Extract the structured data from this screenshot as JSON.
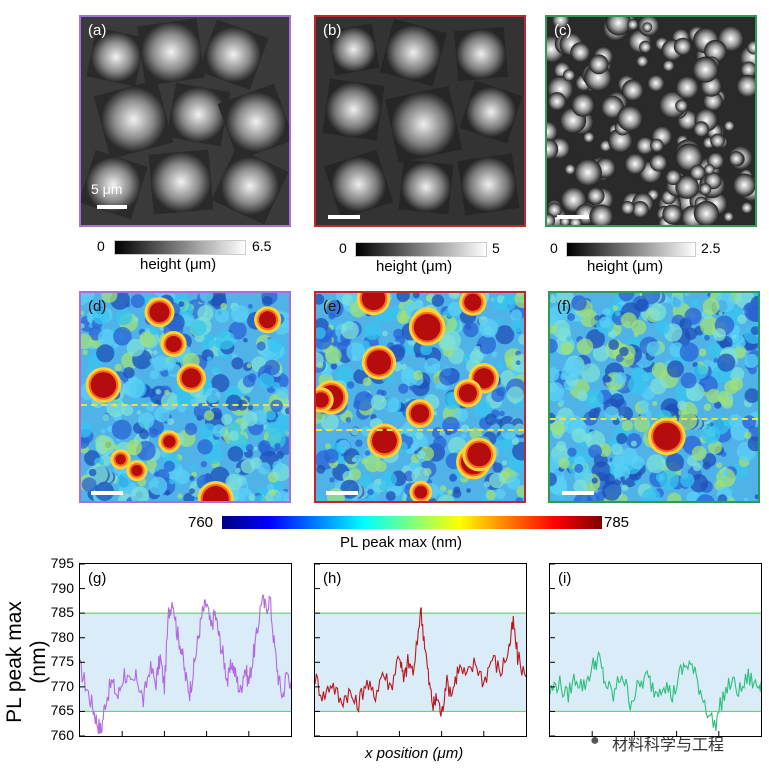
{
  "panels": {
    "a": {
      "label": "(a)",
      "border": "#a66fdc",
      "scale_text": "5 μm",
      "maxh": "6.5"
    },
    "b": {
      "label": "(b)",
      "border": "#c0272d",
      "maxh": "5"
    },
    "c": {
      "label": "(c)",
      "border": "#2e9b55",
      "maxh": "2.5"
    },
    "d": {
      "label": "(d)",
      "border": "#a66fdc"
    },
    "e": {
      "label": "(e)",
      "border": "#c0272d"
    },
    "f": {
      "label": "(f)",
      "border": "#2e9b55"
    }
  },
  "height_colorbar": {
    "min": "0",
    "label": "height (μm)"
  },
  "pl_colorbar": {
    "min": "760",
    "max": "785",
    "label": "PL peak max (nm)"
  },
  "chart_data": [
    {
      "type": "line",
      "title": "(g)",
      "xlabel": "x position (μm)",
      "ylabel": "PL peak max (nm)",
      "ylim": [
        760,
        795
      ],
      "yticks": [
        760,
        765,
        770,
        775,
        780,
        785,
        790,
        795
      ],
      "band": [
        765,
        785
      ],
      "color": "#b36ae0",
      "profile": [
        {
          "x": 0.0,
          "y": 774
        },
        {
          "x": 0.03,
          "y": 770
        },
        {
          "x": 0.06,
          "y": 766
        },
        {
          "x": 0.08,
          "y": 763
        },
        {
          "x": 0.1,
          "y": 761
        },
        {
          "x": 0.12,
          "y": 767
        },
        {
          "x": 0.15,
          "y": 771
        },
        {
          "x": 0.18,
          "y": 768
        },
        {
          "x": 0.21,
          "y": 773
        },
        {
          "x": 0.24,
          "y": 770
        },
        {
          "x": 0.27,
          "y": 772
        },
        {
          "x": 0.3,
          "y": 767
        },
        {
          "x": 0.33,
          "y": 774
        },
        {
          "x": 0.36,
          "y": 771
        },
        {
          "x": 0.38,
          "y": 776
        },
        {
          "x": 0.4,
          "y": 770
        },
        {
          "x": 0.42,
          "y": 785
        },
        {
          "x": 0.44,
          "y": 788
        },
        {
          "x": 0.46,
          "y": 781
        },
        {
          "x": 0.48,
          "y": 778
        },
        {
          "x": 0.5,
          "y": 772
        },
        {
          "x": 0.52,
          "y": 769
        },
        {
          "x": 0.54,
          "y": 774
        },
        {
          "x": 0.56,
          "y": 780
        },
        {
          "x": 0.58,
          "y": 785
        },
        {
          "x": 0.6,
          "y": 787
        },
        {
          "x": 0.62,
          "y": 782
        },
        {
          "x": 0.64,
          "y": 785
        },
        {
          "x": 0.66,
          "y": 780
        },
        {
          "x": 0.68,
          "y": 776
        },
        {
          "x": 0.7,
          "y": 771
        },
        {
          "x": 0.72,
          "y": 775
        },
        {
          "x": 0.74,
          "y": 772
        },
        {
          "x": 0.76,
          "y": 769
        },
        {
          "x": 0.78,
          "y": 774
        },
        {
          "x": 0.8,
          "y": 771
        },
        {
          "x": 0.82,
          "y": 776
        },
        {
          "x": 0.84,
          "y": 781
        },
        {
          "x": 0.86,
          "y": 788
        },
        {
          "x": 0.88,
          "y": 786
        },
        {
          "x": 0.9,
          "y": 788
        },
        {
          "x": 0.92,
          "y": 779
        },
        {
          "x": 0.94,
          "y": 772
        },
        {
          "x": 0.96,
          "y": 768
        },
        {
          "x": 0.98,
          "y": 773
        },
        {
          "x": 1.0,
          "y": 771
        }
      ]
    },
    {
      "type": "line",
      "title": "(h)",
      "ylim": [
        760,
        795
      ],
      "band": [
        765,
        785
      ],
      "color": "#b8171c",
      "profile": [
        {
          "x": 0.0,
          "y": 772
        },
        {
          "x": 0.04,
          "y": 768
        },
        {
          "x": 0.08,
          "y": 771
        },
        {
          "x": 0.12,
          "y": 767
        },
        {
          "x": 0.16,
          "y": 769
        },
        {
          "x": 0.2,
          "y": 766
        },
        {
          "x": 0.24,
          "y": 771
        },
        {
          "x": 0.28,
          "y": 768
        },
        {
          "x": 0.32,
          "y": 773
        },
        {
          "x": 0.36,
          "y": 770
        },
        {
          "x": 0.4,
          "y": 777
        },
        {
          "x": 0.42,
          "y": 771
        },
        {
          "x": 0.44,
          "y": 775
        },
        {
          "x": 0.47,
          "y": 773
        },
        {
          "x": 0.5,
          "y": 786
        },
        {
          "x": 0.52,
          "y": 779
        },
        {
          "x": 0.54,
          "y": 771
        },
        {
          "x": 0.56,
          "y": 766
        },
        {
          "x": 0.58,
          "y": 768
        },
        {
          "x": 0.6,
          "y": 764
        },
        {
          "x": 0.62,
          "y": 771
        },
        {
          "x": 0.65,
          "y": 769
        },
        {
          "x": 0.68,
          "y": 774
        },
        {
          "x": 0.72,
          "y": 772
        },
        {
          "x": 0.76,
          "y": 775
        },
        {
          "x": 0.8,
          "y": 771
        },
        {
          "x": 0.84,
          "y": 776
        },
        {
          "x": 0.88,
          "y": 773
        },
        {
          "x": 0.92,
          "y": 778
        },
        {
          "x": 0.94,
          "y": 783
        },
        {
          "x": 0.96,
          "y": 776
        },
        {
          "x": 1.0,
          "y": 772
        }
      ]
    },
    {
      "type": "line",
      "title": "(i)",
      "ylim": [
        760,
        795
      ],
      "band": [
        765,
        785
      ],
      "color": "#2dbf7c",
      "profile": [
        {
          "x": 0.0,
          "y": 769
        },
        {
          "x": 0.04,
          "y": 771
        },
        {
          "x": 0.08,
          "y": 768
        },
        {
          "x": 0.12,
          "y": 772
        },
        {
          "x": 0.16,
          "y": 770
        },
        {
          "x": 0.2,
          "y": 774
        },
        {
          "x": 0.23,
          "y": 776
        },
        {
          "x": 0.26,
          "y": 771
        },
        {
          "x": 0.3,
          "y": 768
        },
        {
          "x": 0.34,
          "y": 773
        },
        {
          "x": 0.38,
          "y": 767
        },
        {
          "x": 0.42,
          "y": 770
        },
        {
          "x": 0.46,
          "y": 772
        },
        {
          "x": 0.5,
          "y": 769
        },
        {
          "x": 0.54,
          "y": 771
        },
        {
          "x": 0.58,
          "y": 768
        },
        {
          "x": 0.62,
          "y": 773
        },
        {
          "x": 0.66,
          "y": 775
        },
        {
          "x": 0.7,
          "y": 771
        },
        {
          "x": 0.74,
          "y": 766
        },
        {
          "x": 0.78,
          "y": 762
        },
        {
          "x": 0.82,
          "y": 768
        },
        {
          "x": 0.86,
          "y": 771
        },
        {
          "x": 0.9,
          "y": 769
        },
        {
          "x": 0.94,
          "y": 772
        },
        {
          "x": 0.98,
          "y": 770
        },
        {
          "x": 1.0,
          "y": 771
        }
      ]
    }
  ],
  "watermark": "材料科学与工程"
}
